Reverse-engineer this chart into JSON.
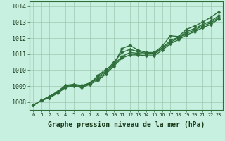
{
  "background_color": "#c8f0e0",
  "grid_color": "#9ec8b0",
  "line_color": "#2d6e3a",
  "marker_color": "#2d6e3a",
  "xlabel": "Graphe pression niveau de la mer (hPa)",
  "xlabel_fontsize": 7.0,
  "ylabel_ticks": [
    1008,
    1009,
    1010,
    1011,
    1012,
    1013,
    1014
  ],
  "xticks": [
    0,
    1,
    2,
    3,
    4,
    5,
    6,
    7,
    8,
    9,
    10,
    11,
    12,
    13,
    14,
    15,
    16,
    17,
    18,
    19,
    20,
    21,
    22,
    23
  ],
  "xlim": [
    -0.5,
    23.5
  ],
  "ylim": [
    1007.5,
    1014.3
  ],
  "series": [
    [
      1007.8,
      1008.1,
      1008.35,
      1008.65,
      1009.05,
      1009.1,
      1009.05,
      1009.15,
      1009.65,
      1010.05,
      1010.35,
      1011.35,
      1011.55,
      1011.25,
      1011.1,
      1011.1,
      1011.5,
      1012.15,
      1012.1,
      1012.55,
      1012.75,
      1013.0,
      1013.3,
      1013.65
    ],
    [
      1007.8,
      1008.1,
      1008.35,
      1008.65,
      1009.0,
      1009.1,
      1009.0,
      1009.2,
      1009.55,
      1009.95,
      1010.5,
      1011.1,
      1011.3,
      1011.15,
      1011.05,
      1011.05,
      1011.4,
      1011.85,
      1012.05,
      1012.4,
      1012.6,
      1012.85,
      1013.05,
      1013.4
    ],
    [
      1007.8,
      1008.1,
      1008.3,
      1008.6,
      1008.95,
      1009.05,
      1008.95,
      1009.15,
      1009.45,
      1009.85,
      1010.35,
      1010.85,
      1011.1,
      1011.05,
      1011.0,
      1011.0,
      1011.35,
      1011.75,
      1012.0,
      1012.3,
      1012.5,
      1012.75,
      1012.95,
      1013.3
    ],
    [
      1007.8,
      1008.1,
      1008.25,
      1008.55,
      1008.9,
      1009.0,
      1008.9,
      1009.1,
      1009.35,
      1009.75,
      1010.25,
      1010.75,
      1010.95,
      1010.95,
      1010.9,
      1010.9,
      1011.25,
      1011.65,
      1011.9,
      1012.2,
      1012.4,
      1012.65,
      1012.85,
      1013.2
    ]
  ],
  "linewidths": [
    1.0,
    1.0,
    1.0,
    1.0
  ],
  "marker_sizes": [
    2.5,
    2.5,
    2.5,
    2.5
  ],
  "figsize": [
    3.2,
    2.0
  ],
  "dpi": 100
}
